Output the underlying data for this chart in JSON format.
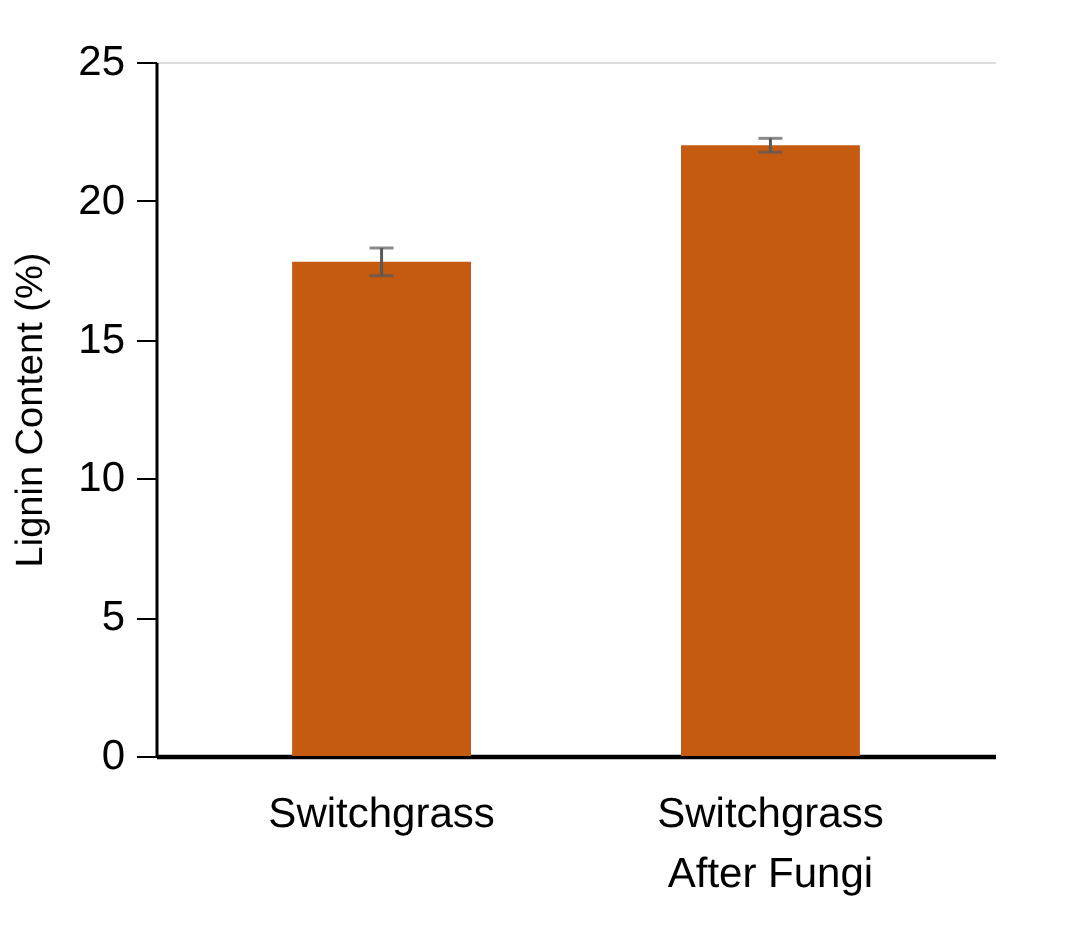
{
  "chart_data": {
    "type": "bar",
    "ylabel": "Lignin Content (%)",
    "categories": [
      "Switchgrass",
      "Switchgrass After Fungi"
    ],
    "values": [
      17.8,
      22.0
    ],
    "errors": [
      0.5,
      0.25
    ],
    "color": "#c55a11",
    "ylim": [
      0,
      25
    ],
    "yticks": [
      0,
      5,
      10,
      15,
      20,
      25
    ],
    "grid": false
  }
}
